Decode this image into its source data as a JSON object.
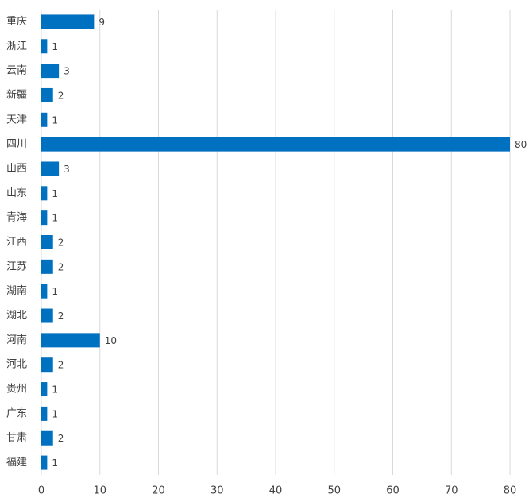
{
  "chart_data": {
    "type": "bar",
    "orientation": "horizontal",
    "categories": [
      "重庆",
      "浙江",
      "云南",
      "新疆",
      "天津",
      "四川",
      "山西",
      "山东",
      "青海",
      "江西",
      "江苏",
      "湖南",
      "湖北",
      "河南",
      "河北",
      "贵州",
      "广东",
      "甘肃",
      "福建"
    ],
    "values": [
      9,
      1,
      3,
      2,
      1,
      80,
      3,
      1,
      1,
      2,
      2,
      1,
      2,
      10,
      2,
      1,
      1,
      2,
      1
    ],
    "color": "#0070c0",
    "xlim": [
      0,
      80
    ],
    "xticks": [
      0,
      10,
      20,
      30,
      40,
      50,
      60,
      70,
      80
    ],
    "grid": true
  }
}
